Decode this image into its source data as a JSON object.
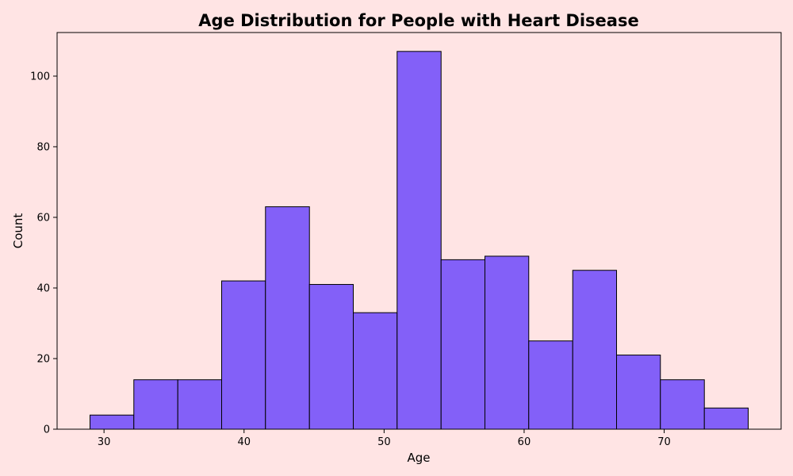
{
  "chart_data": {
    "type": "bar",
    "title": "Age Distribution for People with Heart Disease",
    "xlabel": "Age",
    "ylabel": "Count",
    "bins": [
      {
        "x0": 29.0,
        "x1": 32.13,
        "count": 4
      },
      {
        "x0": 32.13,
        "x1": 35.27,
        "count": 14
      },
      {
        "x0": 35.27,
        "x1": 38.4,
        "count": 14
      },
      {
        "x0": 38.4,
        "x1": 41.53,
        "count": 42
      },
      {
        "x0": 41.53,
        "x1": 44.67,
        "count": 63
      },
      {
        "x0": 44.67,
        "x1": 47.8,
        "count": 41
      },
      {
        "x0": 47.8,
        "x1": 50.93,
        "count": 33
      },
      {
        "x0": 50.93,
        "x1": 54.07,
        "count": 107
      },
      {
        "x0": 54.07,
        "x1": 57.2,
        "count": 48
      },
      {
        "x0": 57.2,
        "x1": 60.33,
        "count": 49
      },
      {
        "x0": 60.33,
        "x1": 63.47,
        "count": 25
      },
      {
        "x0": 63.47,
        "x1": 66.6,
        "count": 45
      },
      {
        "x0": 66.6,
        "x1": 69.73,
        "count": 21
      },
      {
        "x0": 69.73,
        "x1": 72.87,
        "count": 14
      },
      {
        "x0": 72.87,
        "x1": 76.0,
        "count": 6
      }
    ],
    "xlim": [
      26.65,
      78.35
    ],
    "ylim": [
      0,
      112.35
    ],
    "xticks": [
      30,
      40,
      50,
      60,
      70
    ],
    "yticks": [
      0,
      20,
      40,
      60,
      80,
      100
    ],
    "grid": false,
    "bar_color": "#8360f8",
    "edge_color": "#000000",
    "background": "#ffe4e4"
  }
}
